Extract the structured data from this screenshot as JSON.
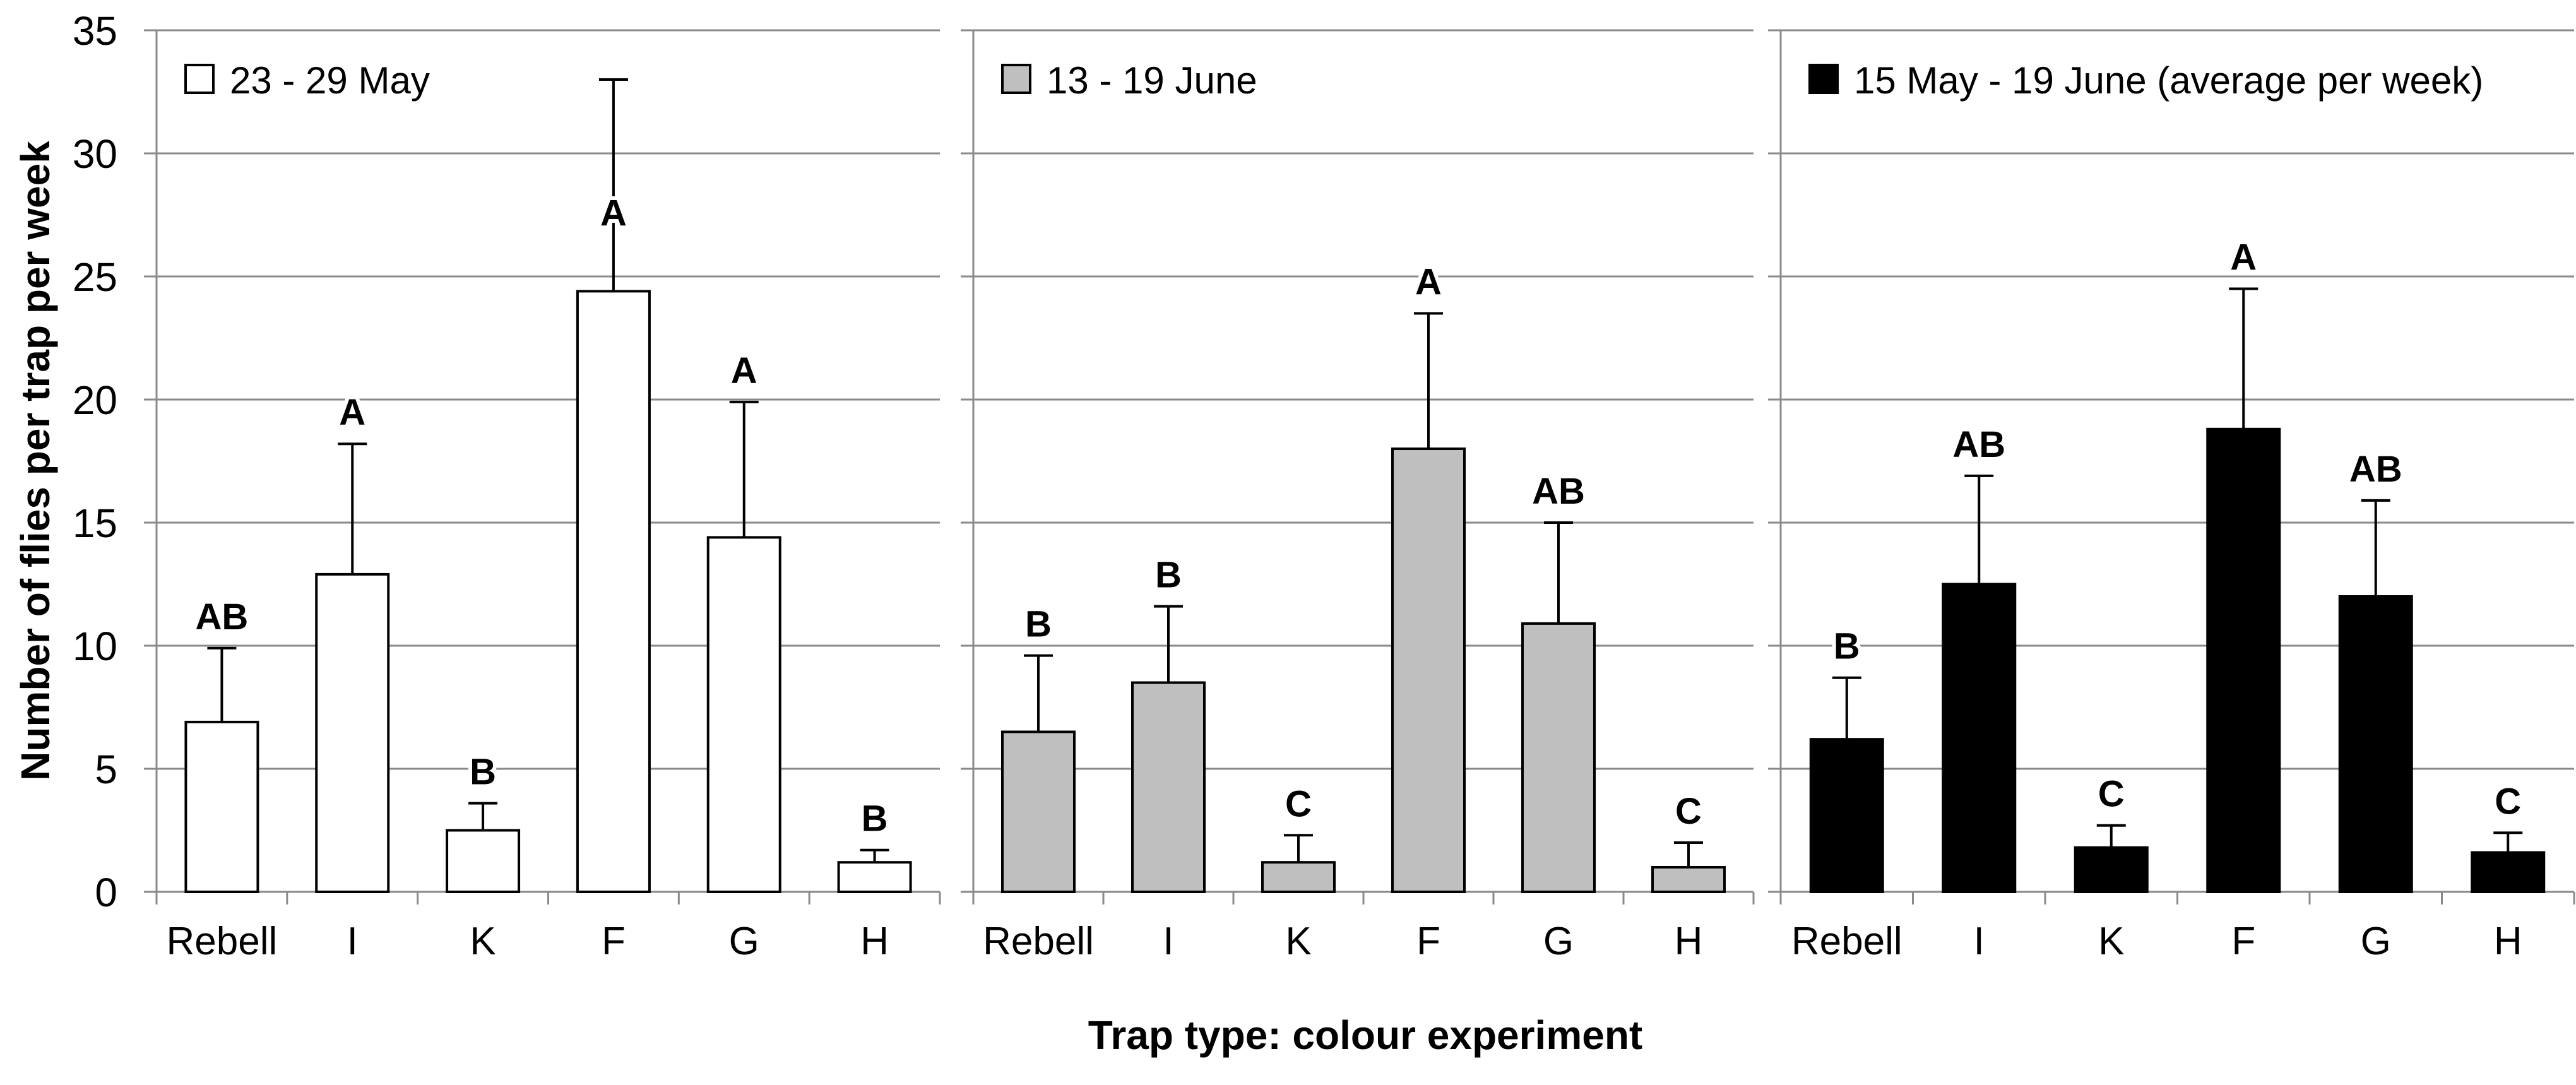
{
  "chart_data": {
    "type": "bar",
    "title": "",
    "xlabel": "Trap type: colour experiment",
    "ylabel": "Number of flies per trap per week",
    "ylim": [
      0,
      35
    ],
    "yticks": [
      0,
      5,
      10,
      15,
      20,
      25,
      30,
      35
    ],
    "grid": "horizontal-major",
    "legend_position": "top-left-inside-each-panel",
    "categories": [
      "Rebell",
      "I",
      "K",
      "F",
      "G",
      "H"
    ],
    "panels": [
      {
        "legend": "23 - 29 May",
        "bar_fill": "#ffffff",
        "values": [
          6.9,
          12.9,
          2.5,
          24.4,
          14.4,
          1.2
        ],
        "errors_plus": [
          3.0,
          5.3,
          1.1,
          8.6,
          5.5,
          0.5
        ],
        "sig_letters": [
          "AB",
          "A",
          "B",
          "A",
          "A",
          "B"
        ],
        "letter_y_override": {
          "3": 27.6
        }
      },
      {
        "legend": "13 - 19 June",
        "bar_fill": "#bfbfbf",
        "values": [
          6.5,
          8.5,
          1.2,
          18.0,
          10.9,
          1.0
        ],
        "errors_plus": [
          3.1,
          3.1,
          1.1,
          5.5,
          4.1,
          1.0
        ],
        "sig_letters": [
          "B",
          "B",
          "C",
          "A",
          "AB",
          "C"
        ]
      },
      {
        "legend": "15 May - 19 June (average per week)",
        "bar_fill": "#000000",
        "values": [
          6.2,
          12.5,
          1.8,
          18.8,
          12.0,
          1.6
        ],
        "errors_plus": [
          2.5,
          4.4,
          0.9,
          5.7,
          3.9,
          0.8
        ],
        "sig_letters": [
          "B",
          "AB",
          "C",
          "A",
          "AB",
          "C"
        ]
      }
    ],
    "colors": {
      "background": "#ffffff",
      "gridline": "#8a8a8a",
      "axis_line": "#8a8a8a",
      "bar_stroke": "#000000",
      "error_bar": "#000000",
      "text": "#000000"
    }
  }
}
